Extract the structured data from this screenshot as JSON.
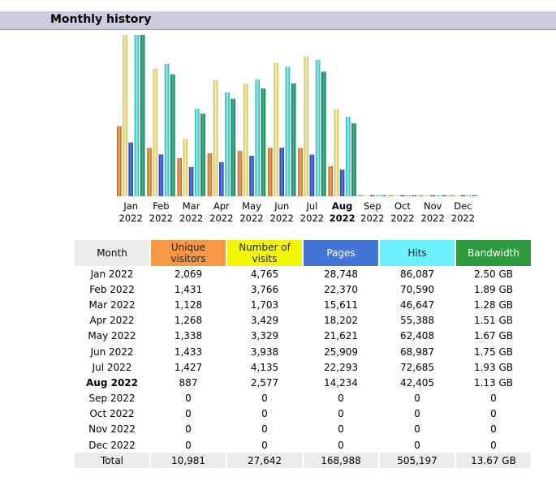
{
  "header": {
    "title": "Monthly history"
  },
  "colors": {
    "visitors": "#e89a3a",
    "visits": "#efe38a",
    "pages": "#3f63d1",
    "hits": "#5fe3e0",
    "bandwidth": "#1f9a6e"
  },
  "chart_data": {
    "type": "bar",
    "categories": [
      "Jan 2022",
      "Feb 2022",
      "Mar 2022",
      "Apr 2022",
      "May 2022",
      "Jun 2022",
      "Jul 2022",
      "Aug 2022",
      "Sep 2022",
      "Oct 2022",
      "Nov 2022",
      "Dec 2022"
    ],
    "tick_labels": [
      [
        "Jan",
        "2022"
      ],
      [
        "Feb",
        "2022"
      ],
      [
        "Mar",
        "2022"
      ],
      [
        "Apr",
        "2022"
      ],
      [
        "May",
        "2022"
      ],
      [
        "Jun",
        "2022"
      ],
      [
        "Jul",
        "2022"
      ],
      [
        "Aug",
        "2022"
      ],
      [
        "Sep",
        "2022"
      ],
      [
        "Oct",
        "2022"
      ],
      [
        "Nov",
        "2022"
      ],
      [
        "Dec",
        "2022"
      ]
    ],
    "highlight_index": 7,
    "series": [
      {
        "name": "Unique visitors",
        "values": [
          2069,
          1431,
          1128,
          1268,
          1338,
          1433,
          1427,
          887,
          0,
          0,
          0,
          0
        ]
      },
      {
        "name": "Number of visits",
        "values": [
          4765,
          3766,
          1703,
          3429,
          3329,
          3938,
          4135,
          2577,
          0,
          0,
          0,
          0
        ]
      },
      {
        "name": "Pages",
        "values": [
          28748,
          22370,
          15611,
          18202,
          21621,
          25909,
          22293,
          14234,
          0,
          0,
          0,
          0
        ]
      },
      {
        "name": "Hits",
        "values": [
          86087,
          70590,
          46647,
          55388,
          62408,
          68987,
          72685,
          42405,
          0,
          0,
          0,
          0
        ]
      },
      {
        "name": "Bandwidth",
        "values": [
          2.5,
          1.89,
          1.28,
          1.51,
          1.67,
          1.75,
          1.93,
          1.13,
          0,
          0,
          0,
          0
        ]
      }
    ]
  },
  "table": {
    "headers": {
      "month": "Month",
      "visitors": [
        "Unique",
        "visitors"
      ],
      "visits": [
        "Number of",
        "visits"
      ],
      "pages": "Pages",
      "hits": "Hits",
      "bandwidth": "Bandwidth"
    },
    "rows": [
      {
        "month": "Jan 2022",
        "visitors": "2,069",
        "visits": "4,765",
        "pages": "28,748",
        "hits": "86,087",
        "bandwidth": "2.50 GB"
      },
      {
        "month": "Feb 2022",
        "visitors": "1,431",
        "visits": "3,766",
        "pages": "22,370",
        "hits": "70,590",
        "bandwidth": "1.89 GB"
      },
      {
        "month": "Mar 2022",
        "visitors": "1,128",
        "visits": "1,703",
        "pages": "15,611",
        "hits": "46,647",
        "bandwidth": "1.28 GB"
      },
      {
        "month": "Apr 2022",
        "visitors": "1,268",
        "visits": "3,429",
        "pages": "18,202",
        "hits": "55,388",
        "bandwidth": "1.51 GB"
      },
      {
        "month": "May 2022",
        "visitors": "1,338",
        "visits": "3,329",
        "pages": "21,621",
        "hits": "62,408",
        "bandwidth": "1.67 GB"
      },
      {
        "month": "Jun 2022",
        "visitors": "1,433",
        "visits": "3,938",
        "pages": "25,909",
        "hits": "68,987",
        "bandwidth": "1.75 GB"
      },
      {
        "month": "Jul 2022",
        "visitors": "1,427",
        "visits": "4,135",
        "pages": "22,293",
        "hits": "72,685",
        "bandwidth": "1.93 GB"
      },
      {
        "month": "Aug 2022",
        "visitors": "887",
        "visits": "2,577",
        "pages": "14,234",
        "hits": "42,405",
        "bandwidth": "1.13 GB"
      },
      {
        "month": "Sep 2022",
        "visitors": "0",
        "visits": "0",
        "pages": "0",
        "hits": "0",
        "bandwidth": "0"
      },
      {
        "month": "Oct 2022",
        "visitors": "0",
        "visits": "0",
        "pages": "0",
        "hits": "0",
        "bandwidth": "0"
      },
      {
        "month": "Nov 2022",
        "visitors": "0",
        "visits": "0",
        "pages": "0",
        "hits": "0",
        "bandwidth": "0"
      },
      {
        "month": "Dec 2022",
        "visitors": "0",
        "visits": "0",
        "pages": "0",
        "hits": "0",
        "bandwidth": "0"
      }
    ],
    "total": {
      "month": "Total",
      "visitors": "10,981",
      "visits": "27,642",
      "pages": "168,988",
      "hits": "505,197",
      "bandwidth": "13.67 GB"
    }
  }
}
